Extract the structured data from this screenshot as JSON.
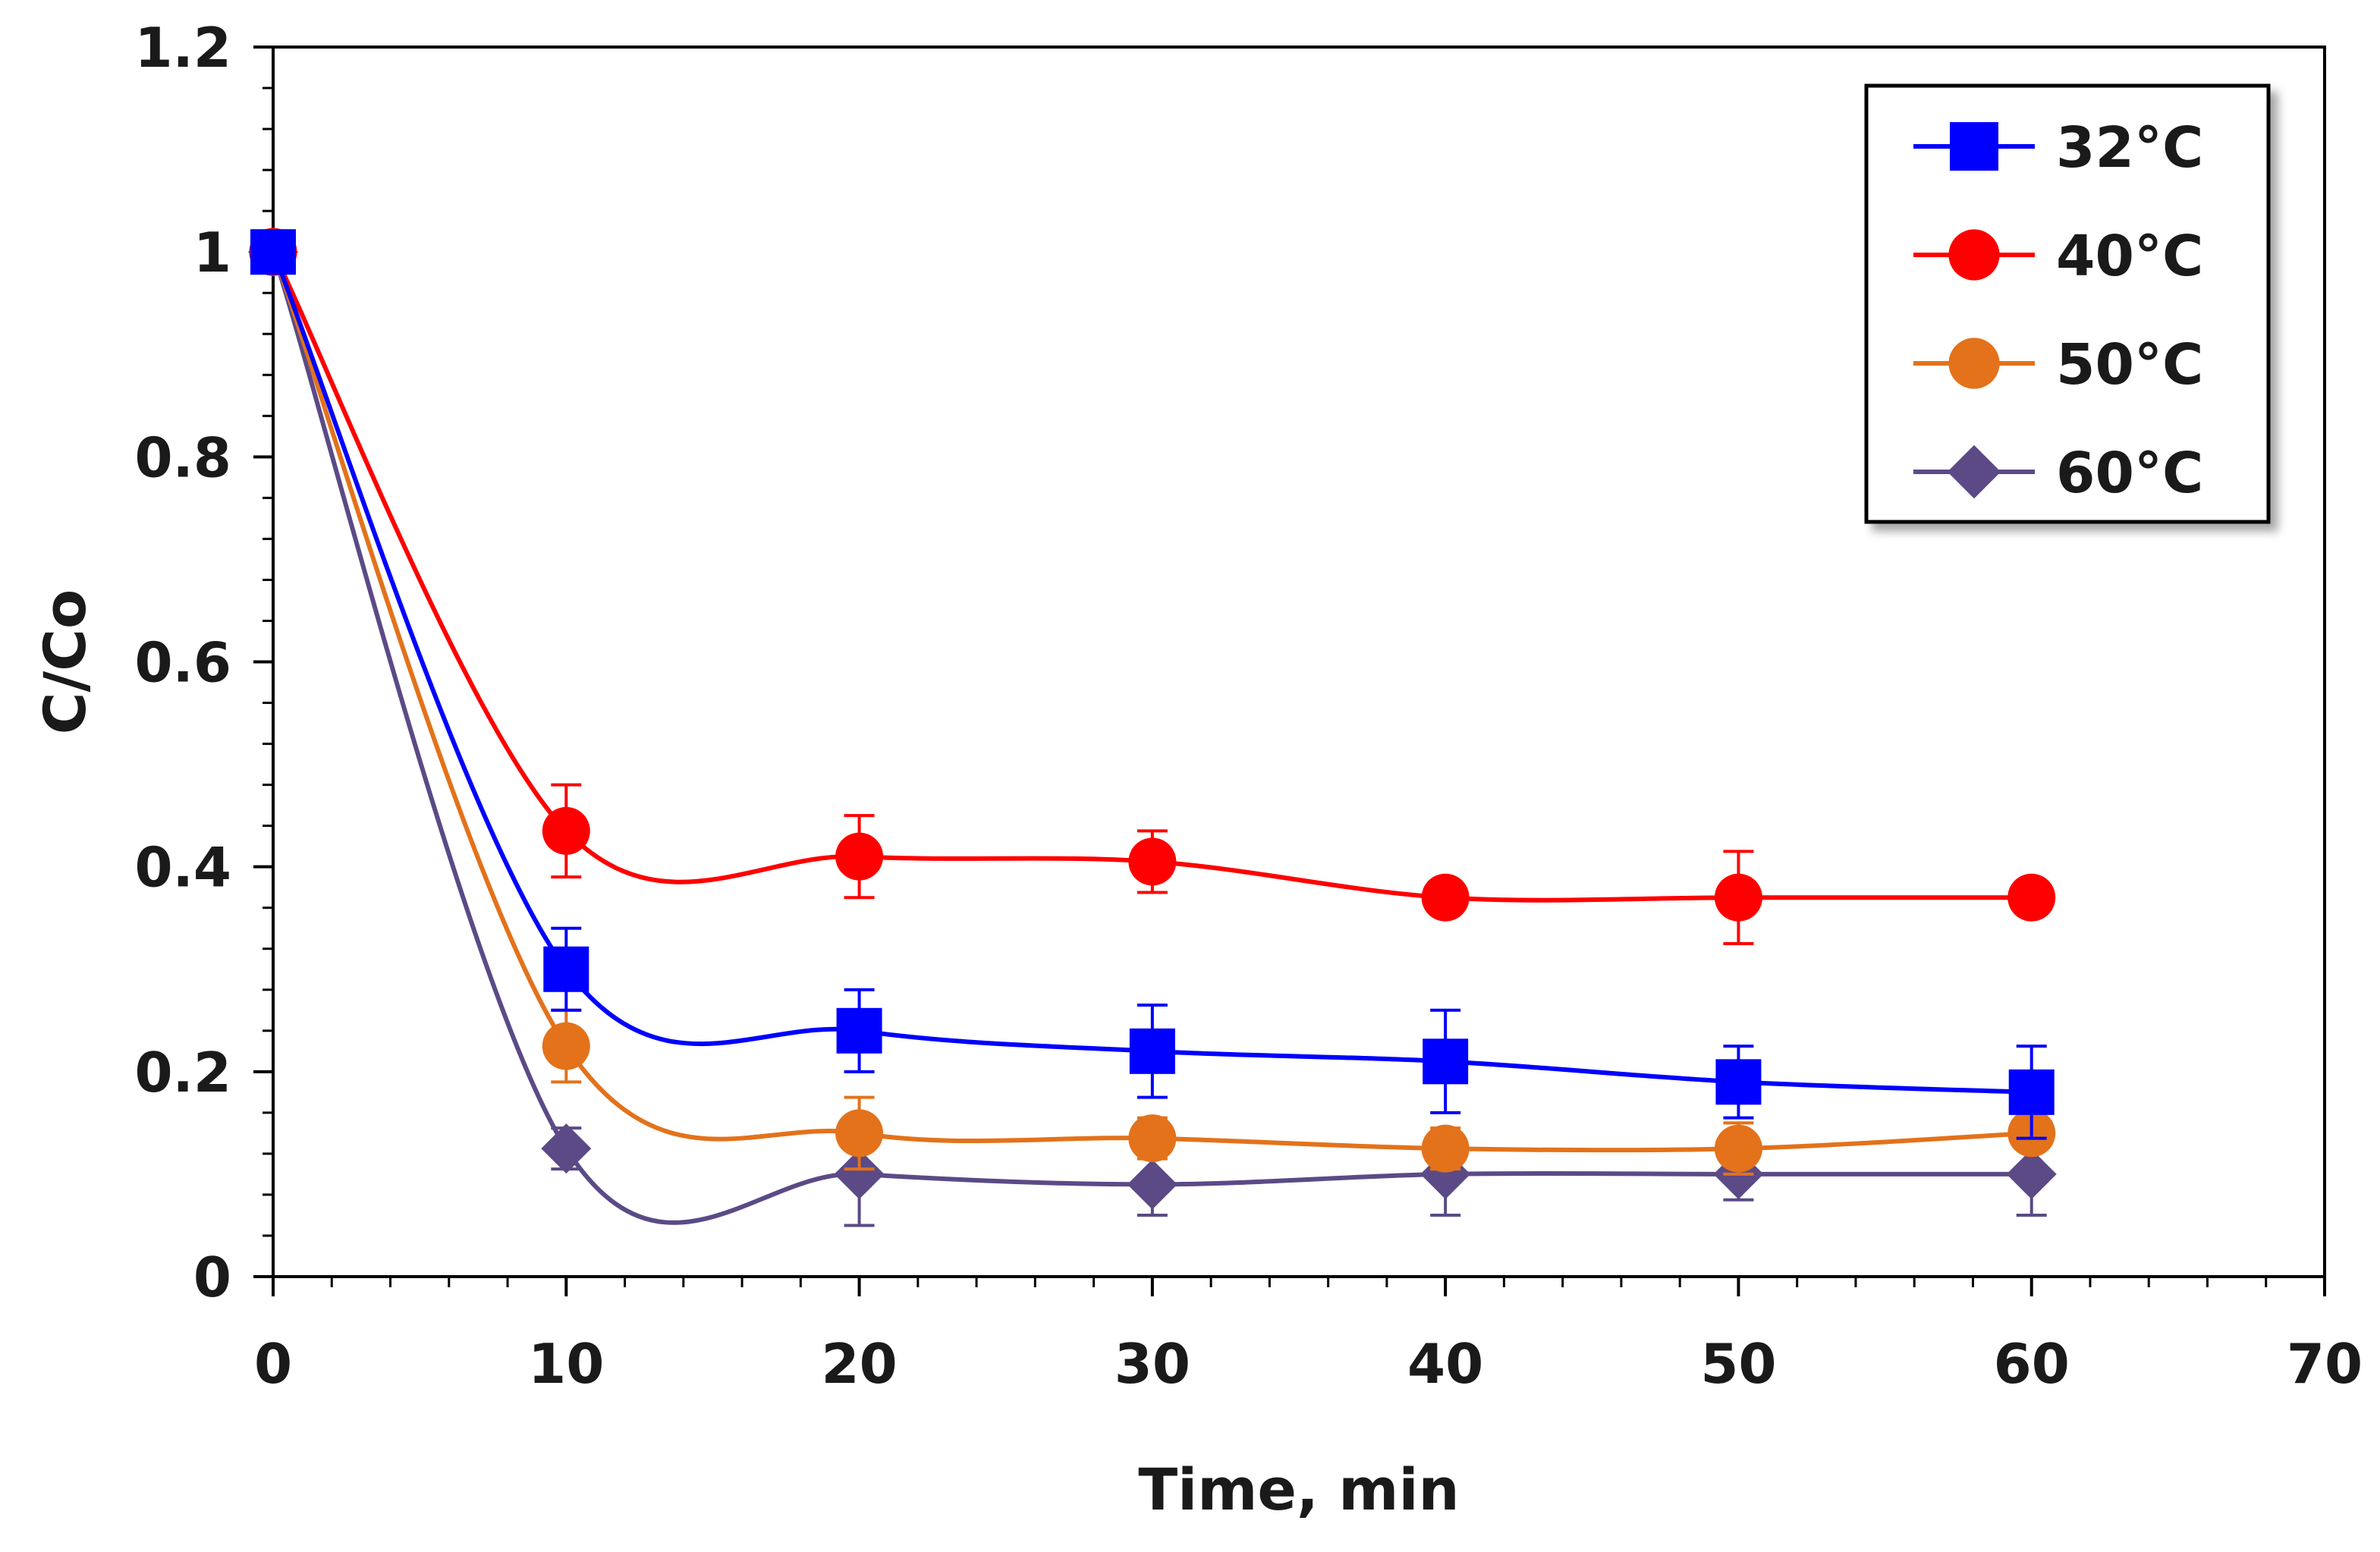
{
  "chart_data": {
    "type": "line",
    "title": "",
    "xlabel": "Time, min",
    "ylabel": "C/Co",
    "xlim": [
      0,
      70
    ],
    "ylim": [
      0,
      1.2
    ],
    "x_ticks": [
      "0",
      "10",
      "20",
      "30",
      "40",
      "50",
      "60",
      "70"
    ],
    "y_ticks": [
      "0",
      "0.2",
      "0.4",
      "0.6",
      "0.8",
      "1",
      "1.2"
    ],
    "x": [
      0,
      10,
      20,
      30,
      40,
      50,
      60
    ],
    "grid": false,
    "legend_position": "top-right",
    "series": [
      {
        "name": "32°C",
        "color": "#0000ff",
        "marker": "square",
        "values": [
          1.0,
          0.3,
          0.24,
          0.22,
          0.21,
          0.19,
          0.18
        ],
        "errors": [
          0,
          0.04,
          0.04,
          0.045,
          0.05,
          0.035,
          0.045
        ]
      },
      {
        "name": "40°C",
        "color": "#ff0000",
        "marker": "circle",
        "values": [
          1.0,
          0.435,
          0.41,
          0.405,
          0.37,
          0.37,
          0.37
        ],
        "errors": [
          0,
          0.045,
          0.04,
          0.03,
          0,
          0.045,
          0
        ]
      },
      {
        "name": "50°C",
        "color": "#e3721b",
        "marker": "circle",
        "values": [
          1.0,
          0.225,
          0.14,
          0.135,
          0.125,
          0.125,
          0.14
        ],
        "errors": [
          0,
          0.035,
          0.035,
          0.02,
          0.02,
          0.025,
          0
        ]
      },
      {
        "name": "60°C",
        "color": "#5b4a86",
        "marker": "diamond",
        "values": [
          1.0,
          0.125,
          0.1,
          0.09,
          0.1,
          0.1,
          0.1
        ],
        "errors": [
          0,
          0.02,
          0.05,
          0.03,
          0.04,
          0.025,
          0.04
        ]
      }
    ]
  }
}
